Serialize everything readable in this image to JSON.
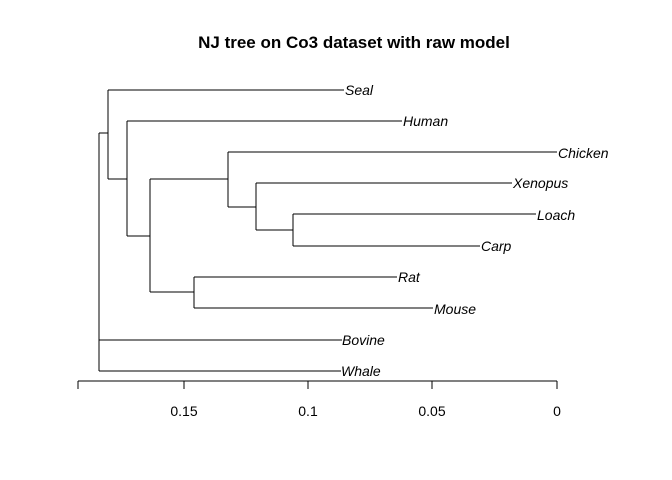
{
  "title": "NJ tree on Co3 dataset with raw model",
  "axis": {
    "direction": "reversed",
    "ticks": [
      {
        "value": 0.15,
        "label": "0.15"
      },
      {
        "value": 0.1,
        "label": "0.1"
      },
      {
        "value": 0.05,
        "label": "0.05"
      },
      {
        "value": 0,
        "label": "0"
      }
    ]
  },
  "tree": {
    "leaves": [
      {
        "id": "seal",
        "label": "Seal"
      },
      {
        "id": "human",
        "label": "Human"
      },
      {
        "id": "chicken",
        "label": "Chicken"
      },
      {
        "id": "xenopus",
        "label": "Xenopus"
      },
      {
        "id": "loach",
        "label": "Loach"
      },
      {
        "id": "carp",
        "label": "Carp"
      },
      {
        "id": "rat",
        "label": "Rat"
      },
      {
        "id": "mouse",
        "label": "Mouse"
      },
      {
        "id": "bovine",
        "label": "Bovine"
      },
      {
        "id": "whale",
        "label": "Whale"
      }
    ]
  }
}
